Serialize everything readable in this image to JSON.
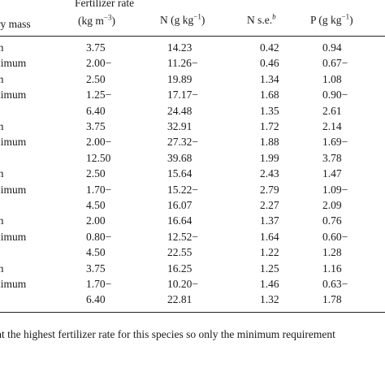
{
  "headers": {
    "col0": "ry mass",
    "col1_line1": "Fertilizer rate",
    "col1_line2": "(kg m",
    "col1_sup": "−3",
    "col1_end": ")",
    "col2": "N (g kg",
    "col2_sup": "−1",
    "col2_end": ")",
    "col3": "N s.e.",
    "col3_sup": "b",
    "col4": "P (g kg",
    "col4_sup": "−1",
    "col4_end": ")"
  },
  "rows": [
    [
      "m",
      "3.75",
      "14.23",
      "0.42",
      "0.94"
    ],
    [
      "ximum",
      "2.00−",
      "11.26−",
      "0.46",
      "0.67−"
    ],
    [
      "m",
      "2.50",
      "19.89",
      "1.34",
      "1.08"
    ],
    [
      "ximum",
      "1.25−",
      "17.17−",
      "1.68",
      "0.90−"
    ],
    [
      "",
      "6.40",
      "24.48",
      "1.35",
      "2.61"
    ],
    [
      "m",
      "3.75",
      "32.91",
      "1.72",
      "2.14"
    ],
    [
      "ximum",
      "2.00−",
      "27.32−",
      "1.88",
      "1.69−"
    ],
    [
      "",
      "12.50",
      "39.68",
      "1.99",
      "3.78"
    ],
    [
      "m",
      "2.50",
      "15.64",
      "2.43",
      "1.47"
    ],
    [
      "ximum",
      "1.70−",
      "15.22−",
      "2.79",
      "1.09−"
    ],
    [
      "",
      "4.50",
      "16.07",
      "2.27",
      "2.09"
    ],
    [
      "m",
      "2.00",
      "16.64",
      "1.37",
      "0.76"
    ],
    [
      "ximum",
      "0.80−",
      "12.52−",
      "1.64",
      "0.60−"
    ],
    [
      "",
      "4.50",
      "22.55",
      "1.22",
      "1.28"
    ],
    [
      "m",
      "3.75",
      "16.25",
      "1.25",
      "1.16"
    ],
    [
      "ximum",
      "1.70−",
      "10.20−",
      "1.46",
      "0.63−"
    ],
    [
      "",
      "6.40",
      "22.81",
      "1.32",
      "1.78"
    ]
  ],
  "footnote": "at the highest fertilizer rate for this species so only the minimum requirement"
}
